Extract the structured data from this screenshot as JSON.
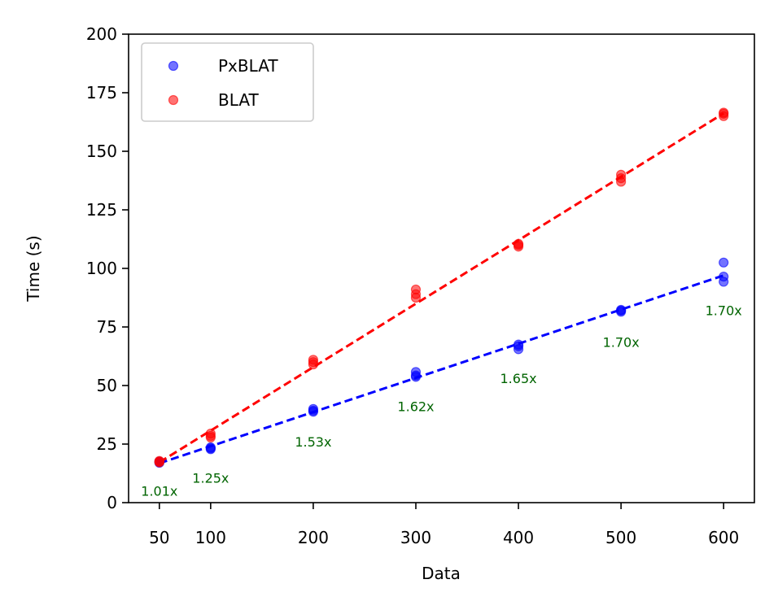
{
  "chart_data": {
    "type": "scatter",
    "title": "",
    "xlabel": "Data",
    "ylabel": "Time (s)",
    "xlim": [
      20,
      630
    ],
    "ylim": [
      0,
      200
    ],
    "x_ticks": [
      50,
      100,
      200,
      300,
      400,
      500,
      600
    ],
    "y_ticks": [
      0,
      25,
      50,
      75,
      100,
      125,
      150,
      175,
      200
    ],
    "grid": false,
    "legend_position": "top-left",
    "series": [
      {
        "name": "PxBLAT",
        "color": "#0000ff",
        "points": [
          {
            "x": 50,
            "y": 17.0
          },
          {
            "x": 50,
            "y": 17.3
          },
          {
            "x": 50,
            "y": 17.6
          },
          {
            "x": 100,
            "y": 22.8
          },
          {
            "x": 100,
            "y": 23.2
          },
          {
            "x": 100,
            "y": 23.6
          },
          {
            "x": 200,
            "y": 38.8
          },
          {
            "x": 200,
            "y": 39.3
          },
          {
            "x": 200,
            "y": 40.0
          },
          {
            "x": 300,
            "y": 53.7
          },
          {
            "x": 300,
            "y": 54.3
          },
          {
            "x": 300,
            "y": 55.8
          },
          {
            "x": 400,
            "y": 65.5
          },
          {
            "x": 400,
            "y": 66.8
          },
          {
            "x": 400,
            "y": 67.5
          },
          {
            "x": 500,
            "y": 81.5
          },
          {
            "x": 500,
            "y": 82.0
          },
          {
            "x": 500,
            "y": 82.3
          },
          {
            "x": 600,
            "y": 94.3
          },
          {
            "x": 600,
            "y": 96.5
          },
          {
            "x": 600,
            "y": 102.5
          }
        ],
        "fit_line": {
          "x": [
            50,
            600
          ],
          "y": [
            16.8,
            97.0
          ]
        }
      },
      {
        "name": "BLAT",
        "color": "#ff0000",
        "points": [
          {
            "x": 50,
            "y": 17.2
          },
          {
            "x": 50,
            "y": 17.5
          },
          {
            "x": 50,
            "y": 17.8
          },
          {
            "x": 100,
            "y": 27.8
          },
          {
            "x": 100,
            "y": 28.5
          },
          {
            "x": 100,
            "y": 29.5
          },
          {
            "x": 200,
            "y": 59.0
          },
          {
            "x": 200,
            "y": 60.0
          },
          {
            "x": 200,
            "y": 61.0
          },
          {
            "x": 300,
            "y": 87.5
          },
          {
            "x": 300,
            "y": 89.0
          },
          {
            "x": 300,
            "y": 91.0
          },
          {
            "x": 400,
            "y": 109.3
          },
          {
            "x": 400,
            "y": 110.0
          },
          {
            "x": 400,
            "y": 110.5
          },
          {
            "x": 500,
            "y": 137.0
          },
          {
            "x": 500,
            "y": 138.5
          },
          {
            "x": 500,
            "y": 140.0
          },
          {
            "x": 600,
            "y": 165.0
          },
          {
            "x": 600,
            "y": 166.0
          },
          {
            "x": 600,
            "y": 166.5
          }
        ],
        "fit_line": {
          "x": [
            50,
            600
          ],
          "y": [
            17.2,
            166.2
          ]
        }
      }
    ],
    "annotations": [
      {
        "text": "1.01x",
        "x": 50,
        "y": 3.0,
        "color": "#006400"
      },
      {
        "text": "1.25x",
        "x": 100,
        "y": 8.5,
        "color": "#006400"
      },
      {
        "text": "1.53x",
        "x": 200,
        "y": 24.0,
        "color": "#006400"
      },
      {
        "text": "1.62x",
        "x": 300,
        "y": 39.0,
        "color": "#006400"
      },
      {
        "text": "1.65x",
        "x": 400,
        "y": 51.0,
        "color": "#006400"
      },
      {
        "text": "1.70x",
        "x": 500,
        "y": 66.5,
        "color": "#006400"
      },
      {
        "text": "1.70x",
        "x": 600,
        "y": 80.0,
        "color": "#006400"
      }
    ]
  }
}
